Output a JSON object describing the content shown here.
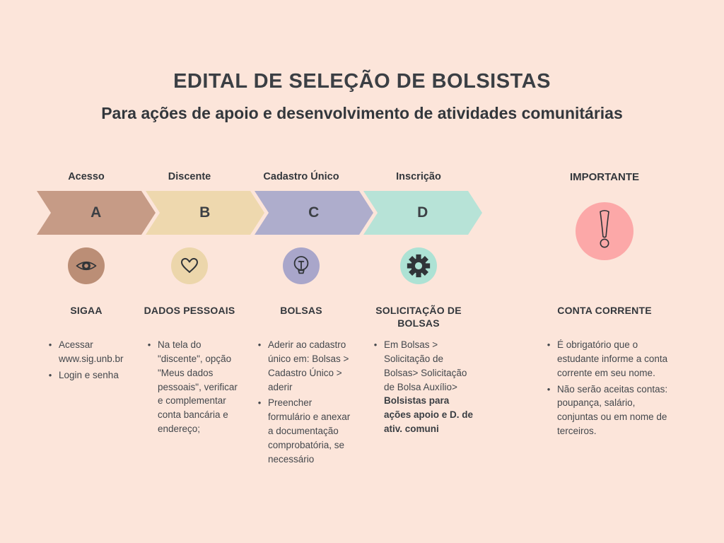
{
  "page": {
    "title": "EDITAL DE SELEÇÃO DE BOLSISTAS",
    "subtitle": "Para ações de apoio e desenvolvimento de atividades comunitárias"
  },
  "colors": {
    "background": "#fce5da",
    "text_dark": "#3b3f44",
    "alert_pink": "#fca8a8"
  },
  "steps": [
    {
      "label": "Acesso",
      "letter": "A",
      "arrow_color": "#c69b86",
      "icon": "eye-icon",
      "icon_bg": "#bb8e76",
      "section": "SIGAA",
      "items": [
        {
          "text": "Acessar www.sig.unb.br"
        },
        {
          "text": "Login e senha"
        }
      ]
    },
    {
      "label": "Discente",
      "letter": "B",
      "arrow_color": "#eed8ae",
      "icon": "heart-icon",
      "icon_bg": "#ecd6ab",
      "section": "DADOS PESSOAIS",
      "items": [
        {
          "text": "Na tela do \"discente\", opção \"Meus dados pessoais\", verificar e complementar conta bancária e endereço;"
        }
      ]
    },
    {
      "label": "Cadastro Único",
      "letter": "C",
      "arrow_color": "#aeadcc",
      "icon": "lightbulb-icon",
      "icon_bg": "#a9a6ca",
      "section": "BOLSAS",
      "items": [
        {
          "text": "Aderir ao cadastro único em: Bolsas > Cadastro Único > aderir"
        },
        {
          "text": "Preencher formulário e anexar a documentação comprobatória, se necessário"
        }
      ]
    },
    {
      "label": "Inscrição",
      "letter": "D",
      "arrow_color": "#b7e3d7",
      "icon": "gear-icon",
      "icon_bg": "#ade2d4",
      "section": "SOLICITAÇÃO DE BOLSAS",
      "items": [
        {
          "text": "Em Bolsas > Solicitação de Bolsas> Solicitação de Bolsa Auxílio>",
          "bold": "Bolsistas para ações apoio e D. de ativ. comuni"
        }
      ]
    }
  ],
  "important": {
    "header": "IMPORTANTE",
    "icon": "exclamation-icon",
    "icon_bg": "#fca8a8",
    "section": "CONTA CORRENTE",
    "items": [
      {
        "text": "É obrigatório que o estudante informe a conta corrente em seu nome."
      },
      {
        "text": "Não serão aceitas contas: poupança, salário, conjuntas ou em nome de terceiros."
      }
    ]
  }
}
